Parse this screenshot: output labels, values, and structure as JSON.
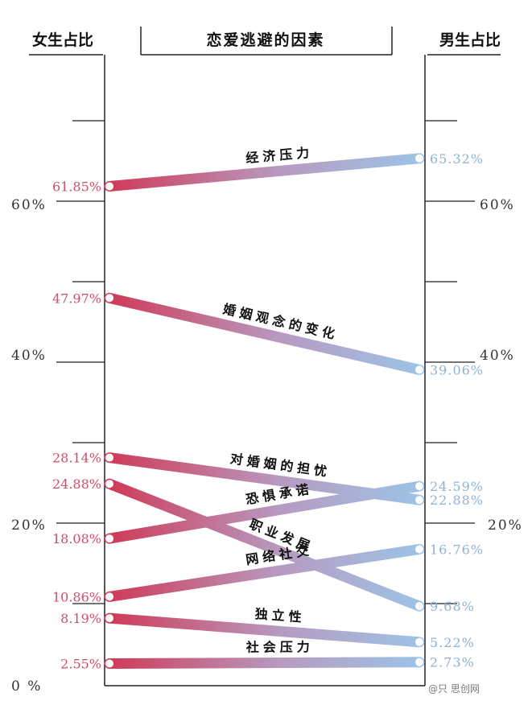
{
  "chart_data": {
    "type": "slope",
    "title": "恋爱逃避的因素",
    "left_axis_label": "女生占比",
    "right_axis_label": "男生占比",
    "left_ticks": [
      "0 %",
      "20%",
      "40%",
      "60%"
    ],
    "right_ticks": [
      "20%",
      "40%",
      "60%"
    ],
    "ylim": [
      0,
      75
    ],
    "colors": {
      "female": "#cf3b58",
      "male": "#9dc3e6"
    },
    "series": [
      {
        "category": "经济压力",
        "female": 61.85,
        "male": 65.32,
        "female_label": "61.85%",
        "male_label": "65.32%"
      },
      {
        "category": "婚姻观念的变化",
        "female": 47.97,
        "male": 39.06,
        "female_label": "47.97%",
        "male_label": "39.06%"
      },
      {
        "category": "对婚姻的担忧",
        "female": 28.14,
        "male": 22.88,
        "female_label": "28.14%",
        "male_label": "22.88%"
      },
      {
        "category": "职业发展",
        "female": 24.88,
        "male": 9.68,
        "female_label": "24.88%",
        "male_label": "9.68%"
      },
      {
        "category": "恐惧承诺",
        "female": 18.08,
        "male": 24.59,
        "female_label": "18.08%",
        "male_label": "24.59%"
      },
      {
        "category": "网络社交",
        "female": 10.86,
        "male": 16.76,
        "female_label": "10.86%",
        "male_label": "16.76%"
      },
      {
        "category": "独立性",
        "female": 8.19,
        "male": 5.22,
        "female_label": "8.19%",
        "male_label": "5.22%"
      },
      {
        "category": "社会压力",
        "female": 2.55,
        "male": 2.73,
        "female_label": "2.55%",
        "male_label": "2.73%"
      }
    ]
  },
  "watermark": "@只 思创网"
}
